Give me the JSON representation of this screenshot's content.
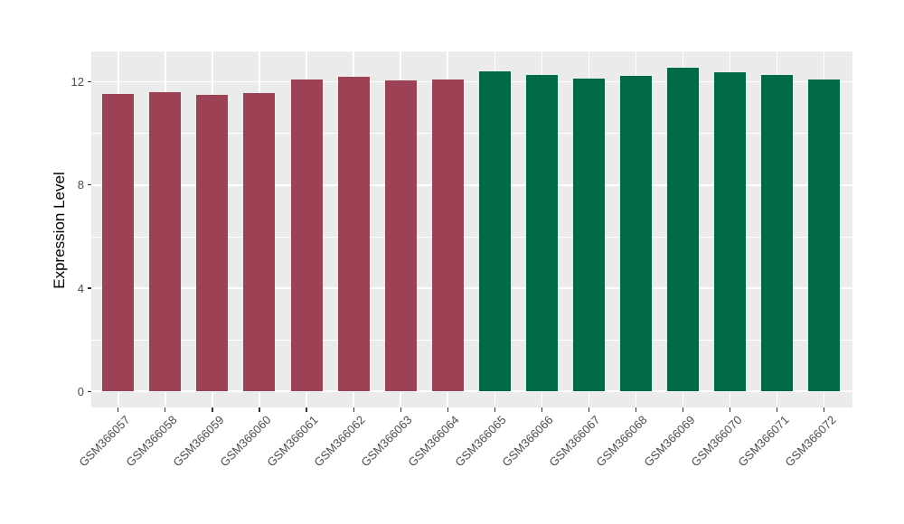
{
  "chart_data": {
    "type": "bar",
    "title": "",
    "xlabel": "",
    "ylabel": "Expression Level",
    "categories": [
      "GSM366057",
      "GSM366058",
      "GSM366059",
      "GSM366060",
      "GSM366061",
      "GSM366062",
      "GSM366063",
      "GSM366064",
      "GSM366065",
      "GSM366066",
      "GSM366067",
      "GSM366068",
      "GSM366069",
      "GSM366070",
      "GSM366071",
      "GSM366072"
    ],
    "values": [
      11.52,
      11.59,
      11.5,
      11.58,
      12.08,
      12.2,
      12.06,
      12.08,
      12.42,
      12.27,
      12.14,
      12.24,
      12.55,
      12.38,
      12.26,
      12.1
    ],
    "bar_colors": [
      "#9D4254",
      "#9D4254",
      "#9D4254",
      "#9D4254",
      "#9D4254",
      "#9D4254",
      "#9D4254",
      "#9D4254",
      "#016946",
      "#016946",
      "#016946",
      "#016946",
      "#016946",
      "#016946",
      "#016946",
      "#016946"
    ],
    "group_colors": {
      "left_group": "#9D4254",
      "right_group": "#016946"
    },
    "ylim": [
      -0.63,
      13.17
    ],
    "yticks_major": [
      0,
      4,
      8,
      12
    ],
    "yticks_minor": [
      2,
      6,
      10
    ],
    "ytick_labels": [
      "0",
      "4",
      "8",
      "12"
    ],
    "legend_position": "none",
    "panel_background": "#EBEBEB",
    "grid_color": "#FFFFFF",
    "tick_mark_color": "#333333",
    "axis_text_color": "#4D4D4D",
    "grid": "horizontal major+minor, vertical major at bar centers"
  }
}
